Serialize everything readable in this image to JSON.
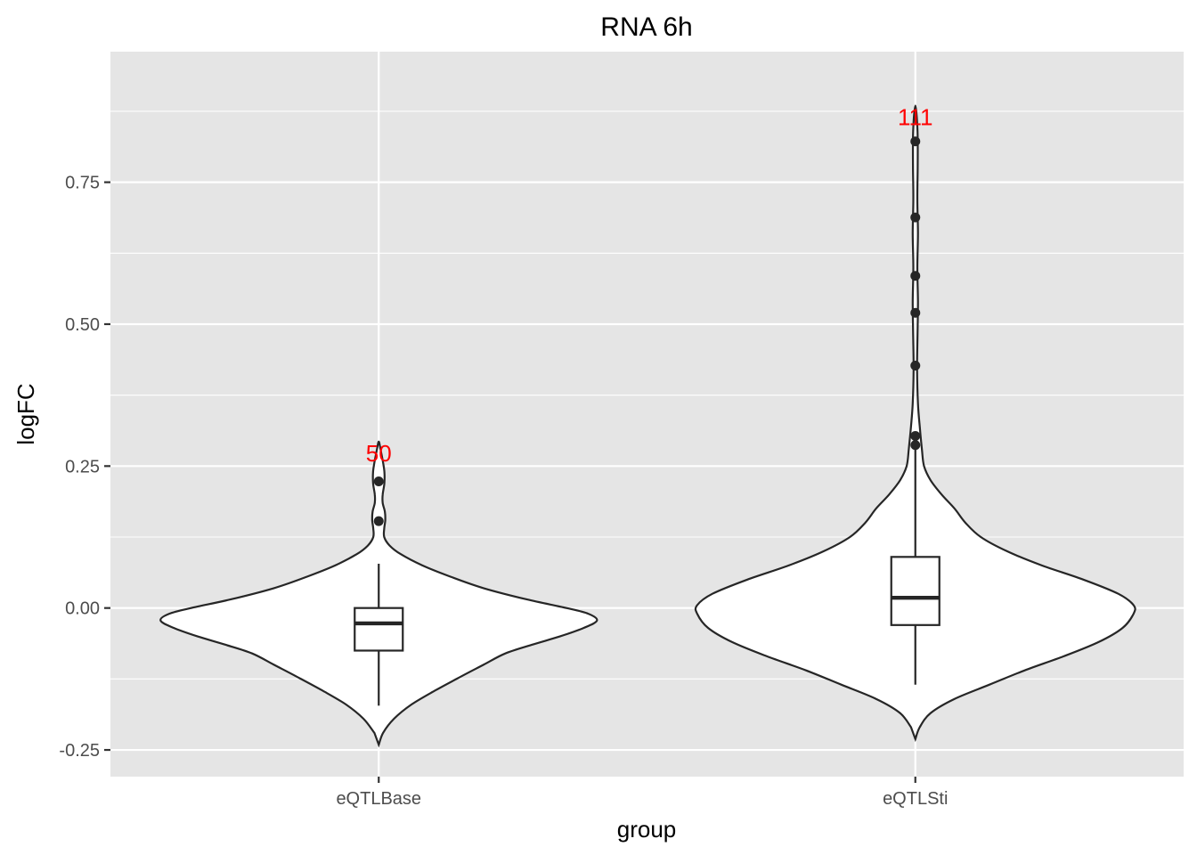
{
  "chart_data": {
    "type": "violin",
    "title": "RNA 6h",
    "xlabel": "group",
    "ylabel": "logFC",
    "categories": [
      "eQTLBase",
      "eQTLSti"
    ],
    "ylim": [
      -0.297,
      0.98
    ],
    "yticks": [
      {
        "value": -0.25,
        "label": "-0.25"
      },
      {
        "value": 0.0,
        "label": "0.00"
      },
      {
        "value": 0.25,
        "label": "0.25"
      },
      {
        "value": 0.5,
        "label": "0.50"
      },
      {
        "value": 0.75,
        "label": "0.75"
      }
    ],
    "grid": true,
    "groups": [
      {
        "name": "eQTLBase",
        "count_label": "50",
        "box": {
          "q1": -0.075,
          "median": -0.027,
          "q3": 0.0,
          "whisker_low": -0.172,
          "whisker_high": 0.078
        },
        "outliers": [
          0.153,
          0.223
        ],
        "violin": [
          {
            "y": -0.241,
            "w": 0.0
          },
          {
            "y": -0.22,
            "w": 0.02
          },
          {
            "y": -0.195,
            "w": 0.07
          },
          {
            "y": -0.17,
            "w": 0.15
          },
          {
            "y": -0.145,
            "w": 0.26
          },
          {
            "y": -0.12,
            "w": 0.38
          },
          {
            "y": -0.1,
            "w": 0.48
          },
          {
            "y": -0.08,
            "w": 0.58
          },
          {
            "y": -0.065,
            "w": 0.7
          },
          {
            "y": -0.05,
            "w": 0.83
          },
          {
            "y": -0.035,
            "w": 0.94
          },
          {
            "y": -0.022,
            "w": 1.0
          },
          {
            "y": -0.01,
            "w": 0.96
          },
          {
            "y": 0.0,
            "w": 0.86
          },
          {
            "y": 0.015,
            "w": 0.68
          },
          {
            "y": 0.035,
            "w": 0.48
          },
          {
            "y": 0.055,
            "w": 0.33
          },
          {
            "y": 0.075,
            "w": 0.2
          },
          {
            "y": 0.095,
            "w": 0.1
          },
          {
            "y": 0.11,
            "w": 0.05
          },
          {
            "y": 0.125,
            "w": 0.025
          },
          {
            "y": 0.14,
            "w": 0.025
          },
          {
            "y": 0.155,
            "w": 0.03
          },
          {
            "y": 0.17,
            "w": 0.028
          },
          {
            "y": 0.185,
            "w": 0.018
          },
          {
            "y": 0.2,
            "w": 0.018
          },
          {
            "y": 0.22,
            "w": 0.026
          },
          {
            "y": 0.24,
            "w": 0.026
          },
          {
            "y": 0.26,
            "w": 0.018
          },
          {
            "y": 0.28,
            "w": 0.008
          },
          {
            "y": 0.293,
            "w": 0.0
          }
        ]
      },
      {
        "name": "eQTLSti",
        "count_label": "111",
        "box": {
          "q1": -0.03,
          "median": 0.018,
          "q3": 0.09,
          "whisker_low": -0.135,
          "whisker_high": 0.28
        },
        "outliers": [
          0.287,
          0.303,
          0.427,
          0.52,
          0.585,
          0.688,
          0.822
        ],
        "violin": [
          {
            "y": -0.231,
            "w": 0.0
          },
          {
            "y": -0.21,
            "w": 0.02
          },
          {
            "y": -0.185,
            "w": 0.07
          },
          {
            "y": -0.16,
            "w": 0.18
          },
          {
            "y": -0.135,
            "w": 0.34
          },
          {
            "y": -0.11,
            "w": 0.5
          },
          {
            "y": -0.085,
            "w": 0.68
          },
          {
            "y": -0.06,
            "w": 0.84
          },
          {
            "y": -0.035,
            "w": 0.95
          },
          {
            "y": -0.01,
            "w": 1.0
          },
          {
            "y": 0.005,
            "w": 1.0
          },
          {
            "y": 0.025,
            "w": 0.93
          },
          {
            "y": 0.05,
            "w": 0.77
          },
          {
            "y": 0.075,
            "w": 0.58
          },
          {
            "y": 0.1,
            "w": 0.42
          },
          {
            "y": 0.125,
            "w": 0.3
          },
          {
            "y": 0.15,
            "w": 0.23
          },
          {
            "y": 0.175,
            "w": 0.18
          },
          {
            "y": 0.2,
            "w": 0.12
          },
          {
            "y": 0.225,
            "w": 0.07
          },
          {
            "y": 0.25,
            "w": 0.04
          },
          {
            "y": 0.28,
            "w": 0.03
          },
          {
            "y": 0.32,
            "w": 0.02
          },
          {
            "y": 0.36,
            "w": 0.012
          },
          {
            "y": 0.42,
            "w": 0.008
          },
          {
            "y": 0.48,
            "w": 0.01
          },
          {
            "y": 0.54,
            "w": 0.012
          },
          {
            "y": 0.6,
            "w": 0.009
          },
          {
            "y": 0.66,
            "w": 0.012
          },
          {
            "y": 0.72,
            "w": 0.009
          },
          {
            "y": 0.78,
            "w": 0.011
          },
          {
            "y": 0.84,
            "w": 0.01
          },
          {
            "y": 0.885,
            "w": 0.0
          }
        ]
      }
    ],
    "colors": {
      "panel": "#e5e5e5",
      "grid": "#ffffff",
      "violin_fill": "#ffffff",
      "stroke": "#262626",
      "count_label": "#ff0000",
      "tick_text": "#4d4d4d"
    }
  }
}
